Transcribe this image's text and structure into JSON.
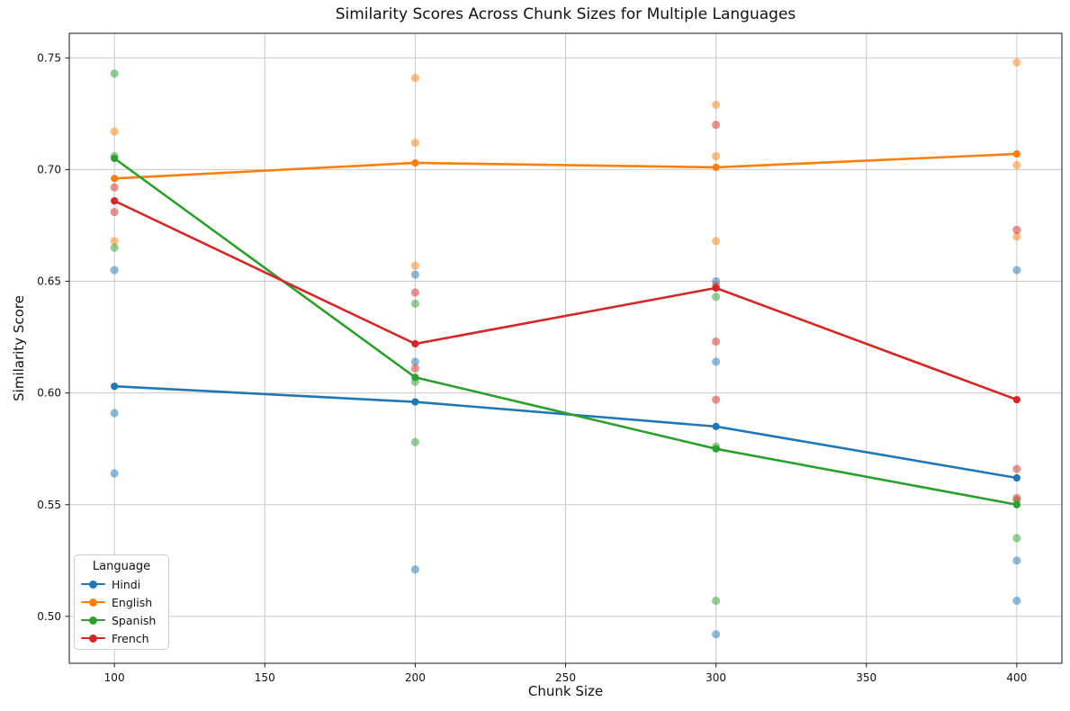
{
  "legend": {
    "title": "Language"
  },
  "chart_data": {
    "type": "line",
    "title": "Similarity Scores Across Chunk Sizes for Multiple Languages",
    "xlabel": "Chunk Size",
    "ylabel": "Similarity Score",
    "x": [
      100,
      200,
      300,
      400
    ],
    "xlim": [
      85,
      415
    ],
    "ylim": [
      0.479,
      0.761
    ],
    "xticks": [
      100,
      150,
      200,
      250,
      300,
      350,
      400
    ],
    "xtick_labels": [
      "100",
      "150",
      "200",
      "250",
      "300",
      "350",
      "400"
    ],
    "yticks": [
      0.5,
      0.55,
      0.6,
      0.65,
      0.7,
      0.75
    ],
    "ytick_labels": [
      "0.50",
      "0.55",
      "0.60",
      "0.65",
      "0.70",
      "0.75"
    ],
    "grid": true,
    "grid_color": "#c9c9c9",
    "spine_color": "#1a1a1a",
    "legend_position": "lower left",
    "scatter_alpha": 0.5,
    "series": [
      {
        "name": "Hindi",
        "color": "#1f77b4",
        "means": [
          0.603,
          0.596,
          0.585,
          0.562
        ],
        "scatter": [
          [
            100,
            0.655
          ],
          [
            100,
            0.591
          ],
          [
            100,
            0.564
          ],
          [
            200,
            0.653
          ],
          [
            200,
            0.614
          ],
          [
            200,
            0.521
          ],
          [
            300,
            0.65
          ],
          [
            300,
            0.614
          ],
          [
            300,
            0.492
          ],
          [
            400,
            0.655
          ],
          [
            400,
            0.525
          ],
          [
            400,
            0.507
          ]
        ]
      },
      {
        "name": "English",
        "color": "#ff7f0e",
        "means": [
          0.696,
          0.703,
          0.701,
          0.707
        ],
        "scatter": [
          [
            100,
            0.717
          ],
          [
            100,
            0.668
          ],
          [
            200,
            0.741
          ],
          [
            200,
            0.712
          ],
          [
            200,
            0.657
          ],
          [
            300,
            0.729
          ],
          [
            300,
            0.706
          ],
          [
            300,
            0.668
          ],
          [
            400,
            0.748
          ],
          [
            400,
            0.702
          ],
          [
            400,
            0.67
          ]
        ]
      },
      {
        "name": "Spanish",
        "color": "#2ca02c",
        "means": [
          0.705,
          0.607,
          0.575,
          0.55
        ],
        "scatter": [
          [
            100,
            0.743
          ],
          [
            100,
            0.706
          ],
          [
            100,
            0.665
          ],
          [
            200,
            0.64
          ],
          [
            200,
            0.605
          ],
          [
            200,
            0.578
          ],
          [
            300,
            0.643
          ],
          [
            300,
            0.576
          ],
          [
            300,
            0.507
          ],
          [
            400,
            0.552
          ],
          [
            400,
            0.535
          ]
        ]
      },
      {
        "name": "French",
        "color": "#d62728",
        "means": [
          0.686,
          0.622,
          0.647,
          0.597
        ],
        "scatter": [
          [
            100,
            0.692
          ],
          [
            100,
            0.681
          ],
          [
            200,
            0.645
          ],
          [
            200,
            0.611
          ],
          [
            300,
            0.72
          ],
          [
            300,
            0.648
          ],
          [
            300,
            0.623
          ],
          [
            300,
            0.597
          ],
          [
            400,
            0.673
          ],
          [
            400,
            0.566
          ],
          [
            400,
            0.553
          ]
        ]
      }
    ]
  }
}
